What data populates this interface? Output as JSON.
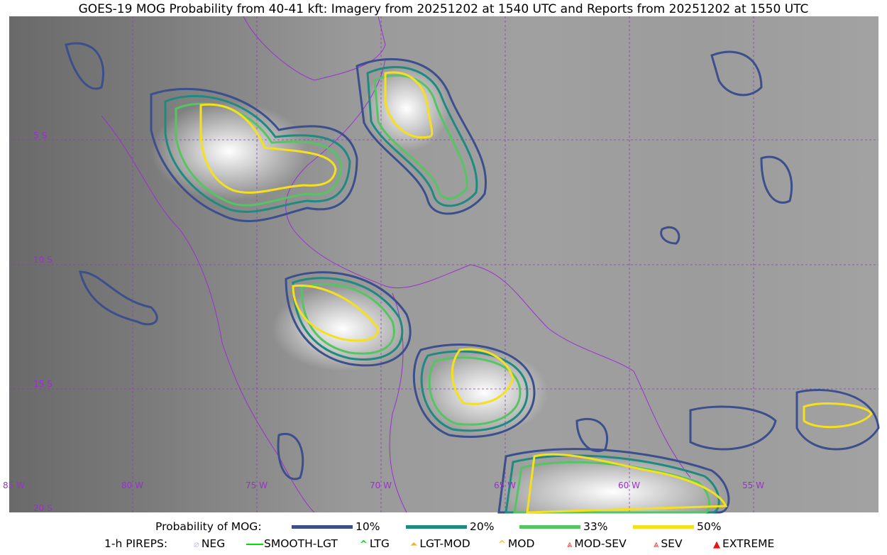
{
  "title": "GOES-19 MOG Probability from 40-41 kft: Imagery from 20251202 at 1540 UTC and Reports from 20251202 at 1550 UTC",
  "map": {
    "lon_labels": [
      "85 W",
      "80 W",
      "75 W",
      "70 W",
      "65 W",
      "60 W",
      "55 W"
    ],
    "lat_labels": [
      "5 S",
      "10 S",
      "15 S",
      "20 S"
    ],
    "grid_color": "#9b30d0",
    "border_color": "#9b30d0"
  },
  "legend": {
    "probability": {
      "label": "Probability of MOG:",
      "items": [
        {
          "label": "10%",
          "color": "#3b4f8c"
        },
        {
          "label": "20%",
          "color": "#1f8a80"
        },
        {
          "label": "33%",
          "color": "#55c462"
        },
        {
          "label": "50%",
          "color": "#f5e01e"
        }
      ]
    },
    "pireps": {
      "label": "1-h PIREPS:",
      "items": [
        {
          "label": "NEG",
          "icon": "neg-circle-icon",
          "color": "#c8c8f0"
        },
        {
          "label": "SMOOTH-LGT",
          "icon": "line-icon",
          "color": "#00e000"
        },
        {
          "label": "LTG",
          "icon": "caret-icon",
          "color": "#00e000"
        },
        {
          "label": "LGT-MOD",
          "icon": "caret-bar-icon",
          "color": "#f5b020"
        },
        {
          "label": "MOD",
          "icon": "caret-icon",
          "color": "#f5b020"
        },
        {
          "label": "MOD-SEV",
          "icon": "double-caret-bar-icon",
          "color": "#f03030"
        },
        {
          "label": "SEV",
          "icon": "double-caret-icon",
          "color": "#f03030"
        },
        {
          "label": "EXTREME",
          "icon": "filled-triangle-icon",
          "color": "#f01010"
        }
      ]
    }
  }
}
